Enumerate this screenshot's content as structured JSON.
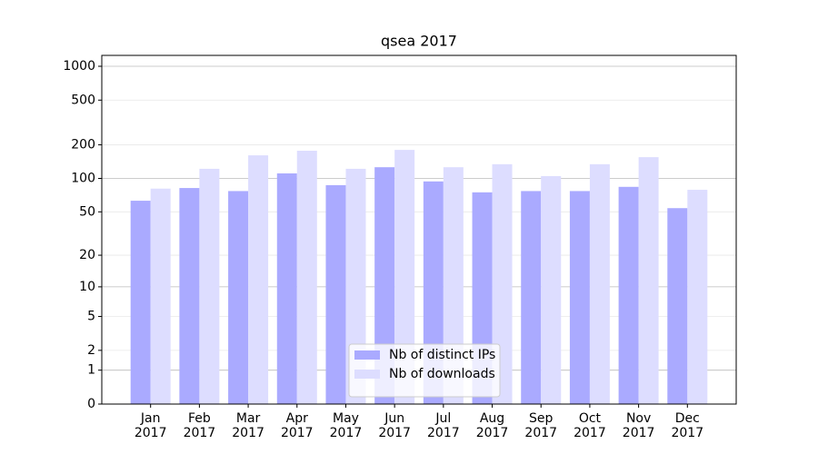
{
  "chart_data": {
    "type": "bar",
    "title": "qsea 2017",
    "categories": [
      "Jan\n2017",
      "Feb\n2017",
      "Mar\n2017",
      "Apr\n2017",
      "May\n2017",
      "Jun\n2017",
      "Jul\n2017",
      "Aug\n2017",
      "Sep\n2017",
      "Oct\n2017",
      "Nov\n2017",
      "Dec\n2017"
    ],
    "series": [
      {
        "name": "Nb of distinct IPs",
        "color": "#aaaaff",
        "values": [
          63,
          82,
          77,
          111,
          87,
          126,
          94,
          75,
          77,
          77,
          84,
          54
        ]
      },
      {
        "name": "Nb of downloads",
        "color": "#ddddff",
        "values": [
          81,
          122,
          161,
          177,
          122,
          180,
          126,
          134,
          105,
          134,
          155,
          79
        ]
      }
    ],
    "ylim": [
      0,
      1250
    ],
    "yticks": [
      0,
      1,
      2,
      5,
      10,
      20,
      50,
      100,
      200,
      500,
      1000
    ],
    "yscale": "log1p",
    "grid": true,
    "legend": "lower center"
  }
}
